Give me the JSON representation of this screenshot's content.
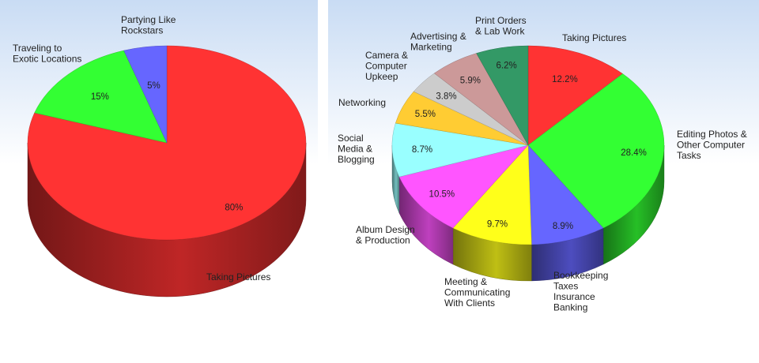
{
  "chart_data": [
    {
      "type": "pie",
      "categories": [
        "Taking Pictures",
        "Traveling to Exotic Locations",
        "Partying Like Rockstars"
      ],
      "values": [
        80,
        15,
        5
      ],
      "value_labels": [
        "80%",
        "15%",
        "5%"
      ],
      "label_lines": [
        [
          "Taking Pictures"
        ],
        [
          "Traveling to",
          "Exotic Locations"
        ],
        [
          "Partying Like",
          "Rockstars"
        ]
      ],
      "colors": [
        "#ff3333",
        "#33ff33",
        "#6666ff"
      ],
      "title": "",
      "legend": "none"
    },
    {
      "type": "pie",
      "categories": [
        "Taking Pictures",
        "Editing Photos & Other Computer Tasks",
        "Bookkeeping Taxes Insurance Banking",
        "Meeting & Communicating With Clients",
        "Album Design & Production",
        "Social Media & Blogging",
        "Networking",
        "Camera & Computer Upkeep",
        "Advertising & Marketing",
        "Print Orders & Lab Work"
      ],
      "values": [
        12.2,
        28.4,
        8.9,
        9.7,
        10.5,
        8.7,
        5.5,
        3.8,
        5.9,
        6.2
      ],
      "value_labels": [
        "12.2%",
        "28.4%",
        "8.9%",
        "9.7%",
        "10.5%",
        "8.7%",
        "5.5%",
        "3.8%",
        "5.9%",
        "6.2%"
      ],
      "label_lines": [
        [
          "Taking Pictures"
        ],
        [
          "Editing Photos &",
          "Other Computer",
          "Tasks"
        ],
        [
          "Bookkeeping",
          "Taxes",
          "Insurance",
          "Banking"
        ],
        [
          "Meeting &",
          "Communicating",
          "With Clients"
        ],
        [
          "Album Design",
          "& Production"
        ],
        [
          "Social",
          "Media &",
          "Blogging"
        ],
        [
          "Networking"
        ],
        [
          "Camera &",
          "Computer",
          "Upkeep"
        ],
        [
          "Advertising &",
          "Marketing"
        ],
        [
          "Print Orders",
          "& Lab Work"
        ]
      ],
      "colors": [
        "#ff3333",
        "#33ff33",
        "#6666ff",
        "#ffff1a",
        "#ff55ff",
        "#99ffff",
        "#ffcc33",
        "#cccccc",
        "#cc9999",
        "#339966"
      ],
      "title": "",
      "legend": "none"
    }
  ]
}
